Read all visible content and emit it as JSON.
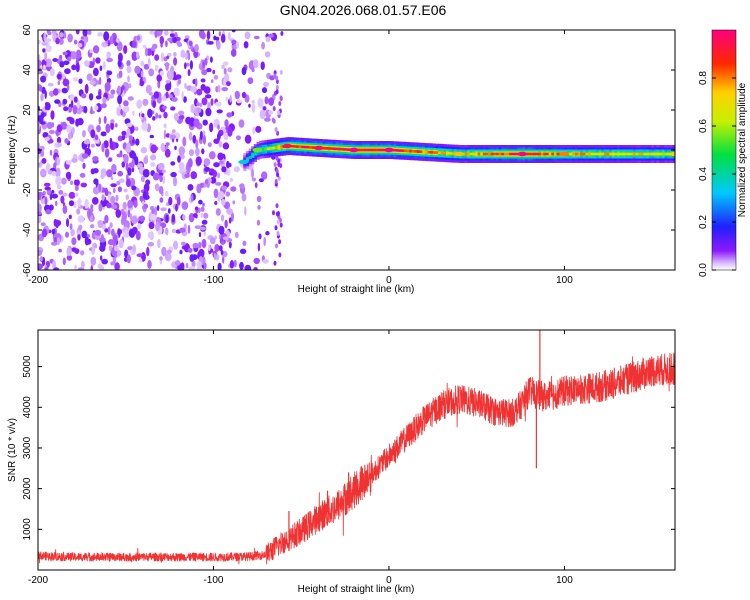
{
  "title": "GN04.2026.068.01.57.E06",
  "chart_data": [
    {
      "type": "heatmap",
      "name": "spectrogram",
      "xlabel": "Height of straight line (km)",
      "ylabel": "Frequency (Hz)",
      "xlim": [
        -200,
        163
      ],
      "ylim": [
        -60,
        60
      ],
      "xticks": [
        -200,
        -100,
        0,
        100
      ],
      "xtick_labels": [
        "-200",
        "-100",
        "0",
        "100"
      ],
      "yticks": [
        -60,
        -40,
        -20,
        0,
        20,
        40,
        60
      ],
      "ytick_labels": [
        "-60",
        "-40",
        "-20",
        "0",
        "20",
        "40",
        "60"
      ],
      "colorbar": {
        "label": "Normalized spectral amplitude",
        "range": [
          0,
          1
        ],
        "ticks": [
          0.0,
          0.2,
          0.4,
          0.6,
          0.8
        ],
        "tick_labels": [
          "0.0",
          "0.2",
          "0.4",
          "0.6",
          "0.8"
        ]
      },
      "noise_region_x": [
        -200,
        -65
      ],
      "trace": [
        {
          "x": -83,
          "freq": -6,
          "amp": 0.3
        },
        {
          "x": -75,
          "freq": 0,
          "amp": 0.5
        },
        {
          "x": -58,
          "freq": 2,
          "amp": 0.9
        },
        {
          "x": -40,
          "freq": 1,
          "amp": 0.9
        },
        {
          "x": -20,
          "freq": 0,
          "amp": 0.95
        },
        {
          "x": 0,
          "freq": 0,
          "amp": 0.95
        },
        {
          "x": 40,
          "freq": -2,
          "amp": 0.7
        },
        {
          "x": 76,
          "freq": -2,
          "amp": 0.95
        },
        {
          "x": 100,
          "freq": -2,
          "amp": 0.75
        },
        {
          "x": 163,
          "freq": -2,
          "amp": 0.65
        }
      ]
    },
    {
      "type": "line",
      "name": "snr",
      "xlabel": "Height of straight line (km)",
      "ylabel": "SNR (10 * v/v)",
      "xlim": [
        -200,
        163
      ],
      "ylim": [
        0,
        5900
      ],
      "xticks": [
        -200,
        -100,
        0,
        100
      ],
      "xtick_labels": [
        "-200",
        "-100",
        "0",
        "100"
      ],
      "yticks": [
        1000,
        2000,
        3000,
        4000,
        5000
      ],
      "ytick_labels": [
        "1000",
        "2000",
        "3000",
        "4000",
        "5000"
      ],
      "color": "#f03232",
      "x": [
        -200,
        -180,
        -160,
        -140,
        -120,
        -100,
        -80,
        -70,
        -60,
        -50,
        -40,
        -30,
        -20,
        -10,
        0,
        10,
        20,
        30,
        40,
        50,
        60,
        70,
        75,
        80,
        85,
        90,
        100,
        110,
        120,
        130,
        140,
        150,
        163
      ],
      "y": [
        350,
        320,
        320,
        320,
        320,
        320,
        330,
        380,
        700,
        950,
        1300,
        1550,
        1950,
        2350,
        2800,
        3250,
        3700,
        4050,
        4200,
        4100,
        3900,
        3850,
        4050,
        4400,
        4300,
        4250,
        4400,
        4450,
        4500,
        4600,
        4750,
        4900,
        4950
      ],
      "spikes": [
        {
          "x": -57,
          "y": 1450
        },
        {
          "x": -35,
          "y": 1950
        },
        {
          "x": -23,
          "y": 2400
        },
        {
          "x": 84,
          "y": 2500
        },
        {
          "x": 86,
          "y": 5900
        }
      ]
    }
  ]
}
